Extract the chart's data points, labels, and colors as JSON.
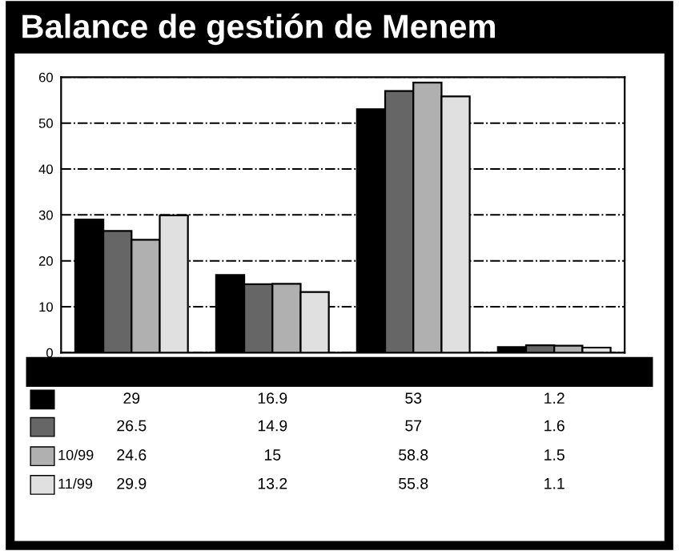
{
  "chart_data": {
    "type": "bar",
    "title": "Balance de gestión de Menem",
    "categories": [
      null,
      null,
      null,
      null
    ],
    "series": [
      {
        "color": "#000000",
        "values": [
          29,
          16.9,
          53,
          1.2
        ]
      },
      {
        "color": "#666666",
        "values": [
          26.5,
          14.9,
          57,
          1.6
        ]
      },
      {
        "name": "10/99",
        "color": "#b0b0b0",
        "values": [
          24.6,
          15,
          58.8,
          1.5
        ]
      },
      {
        "name": "11/99",
        "color": "#e0e0e0",
        "values": [
          29.9,
          13.2,
          55.8,
          1.1
        ]
      }
    ],
    "ylim": [
      0,
      60
    ],
    "yticks": [
      0,
      10,
      20,
      30,
      40,
      50,
      60
    ],
    "grid": "y",
    "legend": "bottom",
    "data_labels": true
  }
}
